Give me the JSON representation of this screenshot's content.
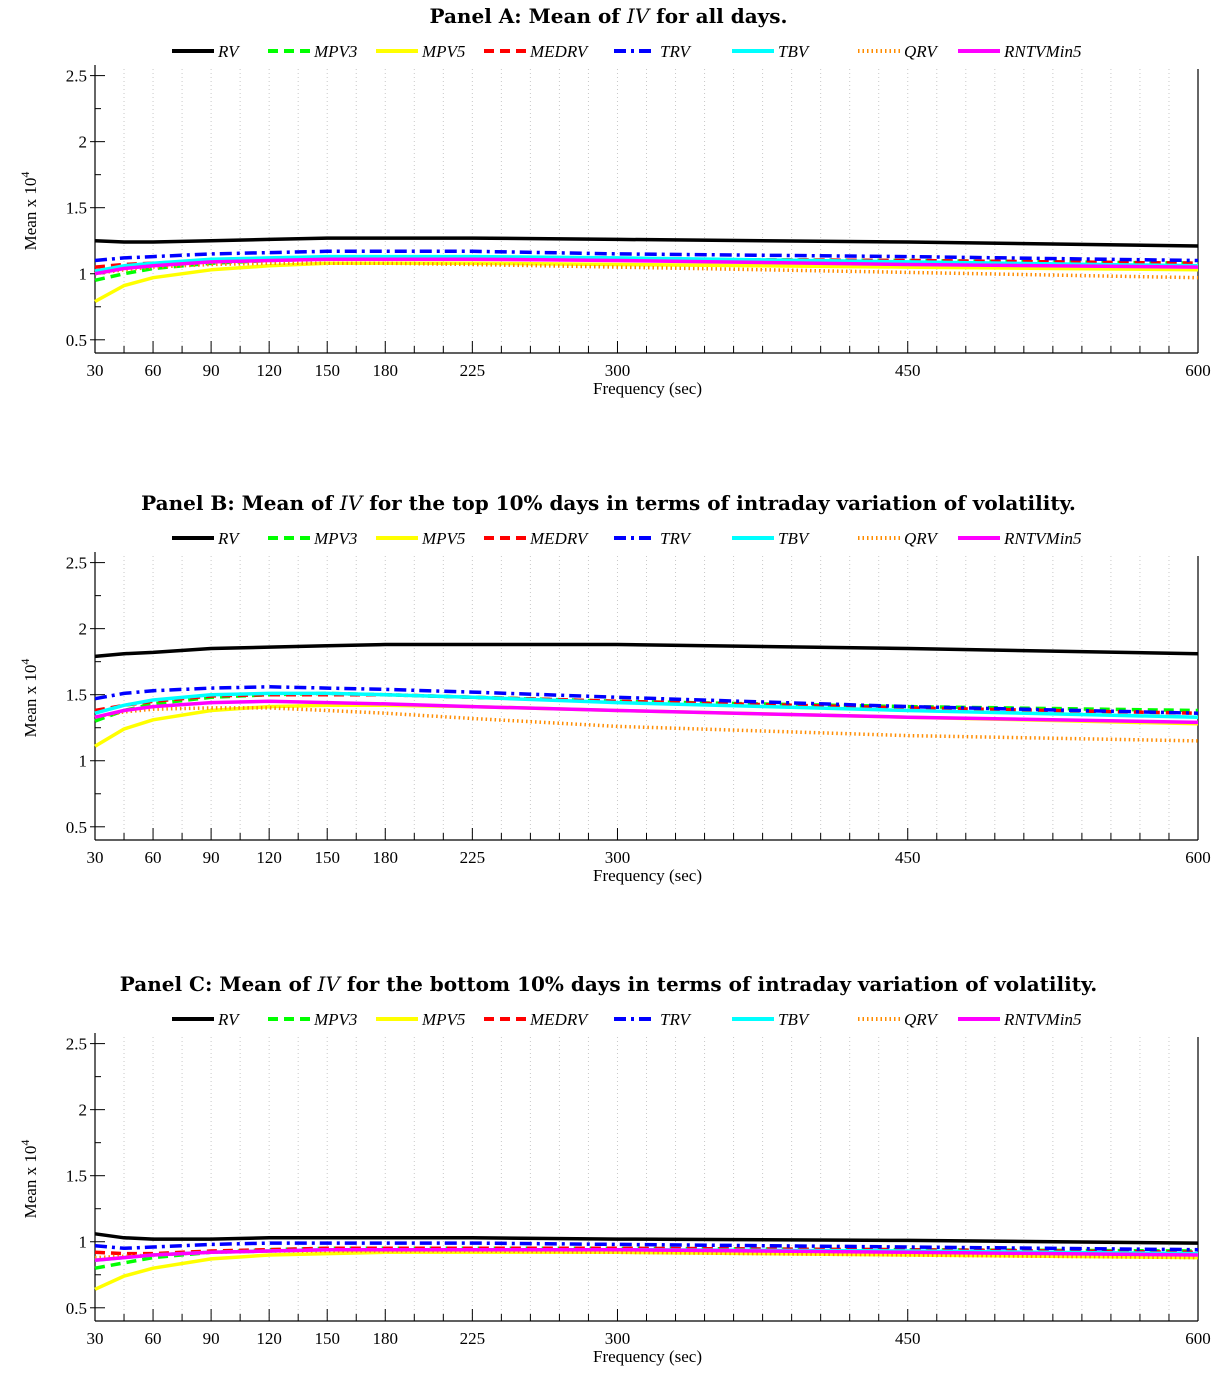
{
  "legend_labels": [
    "RV",
    "MPV3",
    "MPV5",
    "MEDRV",
    "TRV",
    "TBV",
    "QRV",
    "RNTVMin5"
  ],
  "xlabel": "Frequency (sec)",
  "ylabel": "Mean x 10",
  "ylabel_sup": "4",
  "chart_data": [
    {
      "type": "line",
      "title": {
        "prefix": "Panel A: Mean of ",
        "var": "IV",
        "suffix": " for all days."
      },
      "xlabel": "Frequency (sec)",
      "ylabel": "Mean x 10^4",
      "x": [
        30,
        45,
        60,
        90,
        120,
        150,
        180,
        225,
        300,
        450,
        600
      ],
      "xticks": [
        30,
        60,
        90,
        120,
        150,
        180,
        225,
        300,
        450,
        600
      ],
      "yticks": [
        0.5,
        1,
        1.5,
        2,
        2.5
      ],
      "xlim": [
        30,
        600
      ],
      "ylim": [
        0.4,
        2.55
      ],
      "grid": "vertical dotted",
      "legend": "top",
      "series": [
        {
          "name": "RV",
          "color": "#000000",
          "style": "solid",
          "values": [
            1.25,
            1.24,
            1.24,
            1.25,
            1.26,
            1.27,
            1.27,
            1.27,
            1.26,
            1.24,
            1.21
          ]
        },
        {
          "name": "MPV3",
          "color": "#00ff00",
          "style": "dashed",
          "values": [
            0.95,
            1.0,
            1.04,
            1.08,
            1.1,
            1.11,
            1.11,
            1.11,
            1.11,
            1.1,
            1.08
          ]
        },
        {
          "name": "MPV5",
          "color": "#ffff00",
          "style": "solid",
          "values": [
            0.79,
            0.91,
            0.97,
            1.03,
            1.06,
            1.08,
            1.08,
            1.08,
            1.07,
            1.05,
            1.03
          ]
        },
        {
          "name": "MEDRV",
          "color": "#ff0000",
          "style": "dashed",
          "values": [
            1.05,
            1.07,
            1.08,
            1.1,
            1.11,
            1.12,
            1.12,
            1.12,
            1.11,
            1.1,
            1.08
          ]
        },
        {
          "name": "TRV",
          "color": "#0000ff",
          "style": "dashdot",
          "values": [
            1.1,
            1.12,
            1.13,
            1.15,
            1.16,
            1.17,
            1.17,
            1.17,
            1.15,
            1.13,
            1.1
          ]
        },
        {
          "name": "TBV",
          "color": "#00ffff",
          "style": "solid",
          "values": [
            1.02,
            1.06,
            1.08,
            1.11,
            1.12,
            1.13,
            1.13,
            1.13,
            1.12,
            1.09,
            1.06
          ]
        },
        {
          "name": "QRV",
          "color": "#ff8c00",
          "style": "dotted",
          "values": [
            1.0,
            1.03,
            1.05,
            1.07,
            1.08,
            1.08,
            1.08,
            1.07,
            1.05,
            1.01,
            0.97
          ]
        },
        {
          "name": "RNTVMin5",
          "color": "#ff00ff",
          "style": "solid",
          "values": [
            1.0,
            1.04,
            1.06,
            1.09,
            1.1,
            1.11,
            1.11,
            1.11,
            1.1,
            1.07,
            1.05
          ]
        }
      ]
    },
    {
      "type": "line",
      "title": {
        "prefix": "Panel B: Mean of ",
        "var": "IV",
        "suffix": " for the top 10% days in terms of intraday variation of volatility."
      },
      "xlabel": "Frequency (sec)",
      "ylabel": "Mean x 10^4",
      "x": [
        30,
        45,
        60,
        90,
        120,
        150,
        180,
        225,
        300,
        450,
        600
      ],
      "xticks": [
        30,
        60,
        90,
        120,
        150,
        180,
        225,
        300,
        450,
        600
      ],
      "yticks": [
        0.5,
        1,
        1.5,
        2,
        2.5
      ],
      "xlim": [
        30,
        600
      ],
      "ylim": [
        0.4,
        2.55
      ],
      "grid": "vertical dotted",
      "legend": "top",
      "series": [
        {
          "name": "RV",
          "color": "#000000",
          "style": "solid",
          "values": [
            1.79,
            1.81,
            1.82,
            1.85,
            1.86,
            1.87,
            1.88,
            1.88,
            1.88,
            1.85,
            1.81
          ]
        },
        {
          "name": "MPV3",
          "color": "#00ff00",
          "style": "dashed",
          "values": [
            1.3,
            1.38,
            1.43,
            1.48,
            1.5,
            1.51,
            1.5,
            1.48,
            1.45,
            1.41,
            1.38
          ]
        },
        {
          "name": "MPV5",
          "color": "#ffff00",
          "style": "solid",
          "values": [
            1.11,
            1.24,
            1.31,
            1.38,
            1.41,
            1.42,
            1.42,
            1.41,
            1.38,
            1.33,
            1.28
          ]
        },
        {
          "name": "MEDRV",
          "color": "#ff0000",
          "style": "dashed",
          "values": [
            1.38,
            1.42,
            1.45,
            1.49,
            1.5,
            1.5,
            1.5,
            1.48,
            1.45,
            1.4,
            1.36
          ]
        },
        {
          "name": "TRV",
          "color": "#0000ff",
          "style": "dashdot",
          "values": [
            1.47,
            1.51,
            1.53,
            1.55,
            1.56,
            1.55,
            1.54,
            1.52,
            1.48,
            1.41,
            1.36
          ]
        },
        {
          "name": "TBV",
          "color": "#00ffff",
          "style": "solid",
          "values": [
            1.36,
            1.42,
            1.46,
            1.5,
            1.51,
            1.51,
            1.5,
            1.48,
            1.44,
            1.38,
            1.33
          ]
        },
        {
          "name": "QRV",
          "color": "#ff8c00",
          "style": "dotted",
          "values": [
            1.33,
            1.37,
            1.39,
            1.4,
            1.4,
            1.38,
            1.36,
            1.32,
            1.26,
            1.19,
            1.15
          ]
        },
        {
          "name": "RNTVMin5",
          "color": "#ff00ff",
          "style": "solid",
          "values": [
            1.33,
            1.38,
            1.41,
            1.44,
            1.45,
            1.44,
            1.43,
            1.41,
            1.38,
            1.33,
            1.29
          ]
        }
      ]
    },
    {
      "type": "line",
      "title": {
        "prefix": "Panel C: Mean of ",
        "var": "IV",
        "suffix": " for the bottom 10% days in terms of intraday variation of volatility."
      },
      "xlabel": "Frequency (sec)",
      "ylabel": "Mean x 10^4",
      "x": [
        30,
        45,
        60,
        90,
        120,
        150,
        180,
        225,
        300,
        450,
        600
      ],
      "xticks": [
        30,
        60,
        90,
        120,
        150,
        180,
        225,
        300,
        450,
        600
      ],
      "yticks": [
        0.5,
        1,
        1.5,
        2,
        2.5
      ],
      "xlim": [
        30,
        600
      ],
      "ylim": [
        0.4,
        2.55
      ],
      "grid": "vertical dotted",
      "legend": "top",
      "series": [
        {
          "name": "RV",
          "color": "#000000",
          "style": "solid",
          "values": [
            1.06,
            1.03,
            1.02,
            1.02,
            1.03,
            1.03,
            1.03,
            1.03,
            1.02,
            1.01,
            0.99
          ]
        },
        {
          "name": "MPV3",
          "color": "#00ff00",
          "style": "dashed",
          "values": [
            0.8,
            0.84,
            0.88,
            0.92,
            0.94,
            0.95,
            0.95,
            0.95,
            0.95,
            0.94,
            0.93
          ]
        },
        {
          "name": "MPV5",
          "color": "#ffff00",
          "style": "solid",
          "values": [
            0.64,
            0.74,
            0.8,
            0.87,
            0.9,
            0.91,
            0.92,
            0.92,
            0.92,
            0.9,
            0.88
          ]
        },
        {
          "name": "MEDRV",
          "color": "#ff0000",
          "style": "dashed",
          "values": [
            0.92,
            0.91,
            0.91,
            0.93,
            0.94,
            0.95,
            0.95,
            0.95,
            0.95,
            0.94,
            0.92
          ]
        },
        {
          "name": "TRV",
          "color": "#0000ff",
          "style": "dashdot",
          "values": [
            0.97,
            0.95,
            0.96,
            0.98,
            0.99,
            0.99,
            0.99,
            0.99,
            0.98,
            0.96,
            0.94
          ]
        },
        {
          "name": "TBV",
          "color": "#00ffff",
          "style": "solid",
          "values": [
            0.86,
            0.88,
            0.9,
            0.92,
            0.93,
            0.94,
            0.94,
            0.94,
            0.94,
            0.93,
            0.91
          ]
        },
        {
          "name": "QRV",
          "color": "#ff8c00",
          "style": "dotted",
          "values": [
            0.88,
            0.89,
            0.9,
            0.92,
            0.93,
            0.93,
            0.93,
            0.93,
            0.92,
            0.9,
            0.88
          ]
        },
        {
          "name": "RNTVMin5",
          "color": "#ff00ff",
          "style": "solid",
          "values": [
            0.86,
            0.88,
            0.9,
            0.92,
            0.93,
            0.94,
            0.94,
            0.94,
            0.94,
            0.92,
            0.9
          ]
        }
      ]
    }
  ]
}
